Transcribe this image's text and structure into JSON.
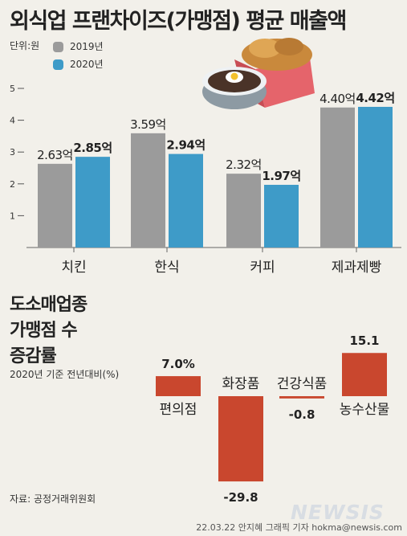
{
  "header": {
    "title": "외식업 프랜차이즈(가맹점) 평균 매출액",
    "unit": "단위:원"
  },
  "colors": {
    "series_2019": "#9b9b9b",
    "series_2020": "#3e9bc8",
    "bar2": "#c9472e",
    "background": "#f2f0ea"
  },
  "chart_data": [
    {
      "type": "bar",
      "categories": [
        "치킨",
        "한식",
        "커피",
        "제과제빵"
      ],
      "series": [
        {
          "name": "2019년",
          "values": [
            2.63,
            3.59,
            2.32,
            4.4
          ],
          "labels": [
            "2.63억",
            "3.59억",
            "2.32억",
            "4.40억"
          ]
        },
        {
          "name": "2020년",
          "values": [
            2.85,
            2.94,
            1.97,
            4.42
          ],
          "labels": [
            "2.85억",
            "2.94억",
            "1.97억",
            "4.42억"
          ]
        }
      ],
      "yticks": [
        "1",
        "2",
        "3",
        "4",
        "5"
      ],
      "ylim": [
        0,
        5
      ],
      "legend": "top-left",
      "grid": false
    },
    {
      "type": "bar",
      "title_lines": [
        "도소매업종",
        "가맹점 수",
        "증감률"
      ],
      "subtitle": "2020년 기준 전년대비(%)",
      "categories": [
        "편의점",
        "화장품",
        "건강식품",
        "농수산물"
      ],
      "values": [
        7.0,
        -29.8,
        -0.8,
        15.1
      ],
      "labels": [
        "7.0%",
        "-29.8",
        "-0.8",
        "15.1"
      ],
      "grid": false
    }
  ],
  "footer": {
    "source": "자료: 공정거래위원회",
    "credit": "22.03.22 안지혜 그래픽 기자 hokma@newsis.com",
    "logo": "NEWSIS"
  }
}
